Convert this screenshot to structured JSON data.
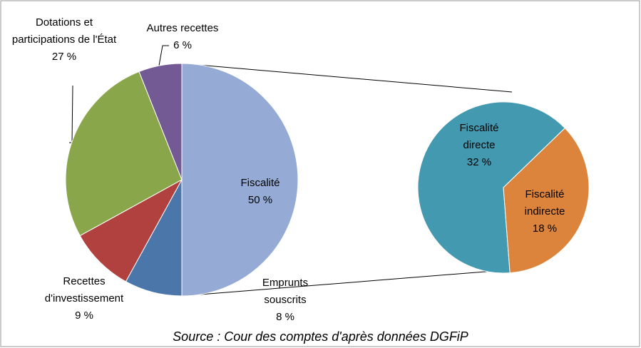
{
  "chart_data": [
    {
      "type": "pie",
      "categories": [
        "Fiscalité",
        "Emprunts souscrits",
        "Recettes d'investissement",
        "Dotations et participations de l'État",
        "Autres recettes"
      ],
      "values": [
        50,
        8,
        9,
        27,
        6
      ],
      "value_labels": [
        "50 %",
        "8 %",
        "9 %",
        "27 %",
        "6 %"
      ],
      "colors": [
        "#95abd5",
        "#4a76aa",
        "#b0413e",
        "#8aa64a",
        "#735a94"
      ],
      "source": "Source : Cour des comptes  d'après données DGFiP"
    },
    {
      "type": "pie",
      "categories": [
        "Fiscalité directe",
        "Fiscalité indirecte"
      ],
      "values": [
        32,
        18
      ],
      "value_labels": [
        "32 %",
        "18 %"
      ],
      "colors": [
        "#4299b0",
        "#dc843b"
      ]
    }
  ]
}
